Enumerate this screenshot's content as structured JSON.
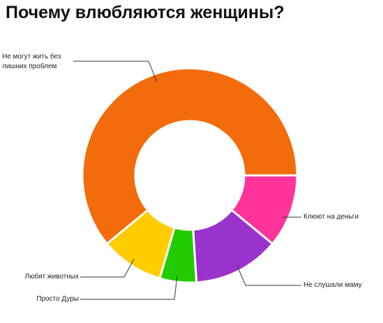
{
  "chart_data": {
    "type": "donut",
    "title": "Почему влюбляются женщины?",
    "categories": [
      "Не могут жить без лишних проблем",
      "Любят животных",
      "Просто Дуры",
      "Не слушали маму",
      "Клюют на деньги"
    ],
    "values": [
      61,
      9.5,
      5.5,
      13,
      11
    ],
    "colors": [
      "#f26c0c",
      "#ffcc00",
      "#22cc00",
      "#9933cc",
      "#ff3399"
    ]
  }
}
